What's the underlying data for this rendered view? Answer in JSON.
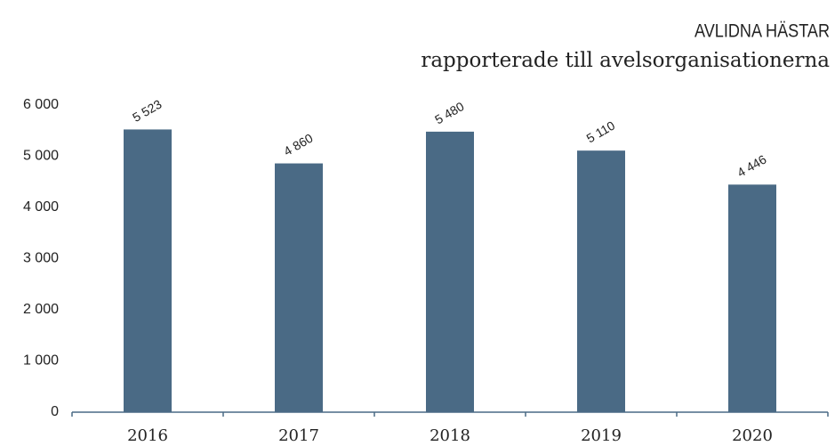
{
  "chart_data": {
    "type": "bar",
    "title": "AVLIDNA HÄSTAR",
    "subtitle": "rapporterade till avelsorganisationerna",
    "categories": [
      "2016",
      "2017",
      "2018",
      "2019",
      "2020"
    ],
    "values": [
      5523,
      4860,
      5480,
      5110,
      4446
    ],
    "value_labels": [
      "5 523",
      "4 860",
      "5 480",
      "5 110",
      "4 446"
    ],
    "color": "#4a6a85",
    "ylim": [
      0,
      6000
    ],
    "yticks": [
      0,
      {
        "value": 1000,
        "label": "1 000"
      },
      {
        "value": 2000,
        "label": "2 000"
      },
      {
        "value": 3000,
        "label": "3 000"
      },
      {
        "value": 4000,
        "label": "4 000"
      },
      {
        "value": 5000,
        "label": "5 000"
      },
      {
        "value": 6000,
        "label": "6 000"
      }
    ],
    "grid": false
  }
}
